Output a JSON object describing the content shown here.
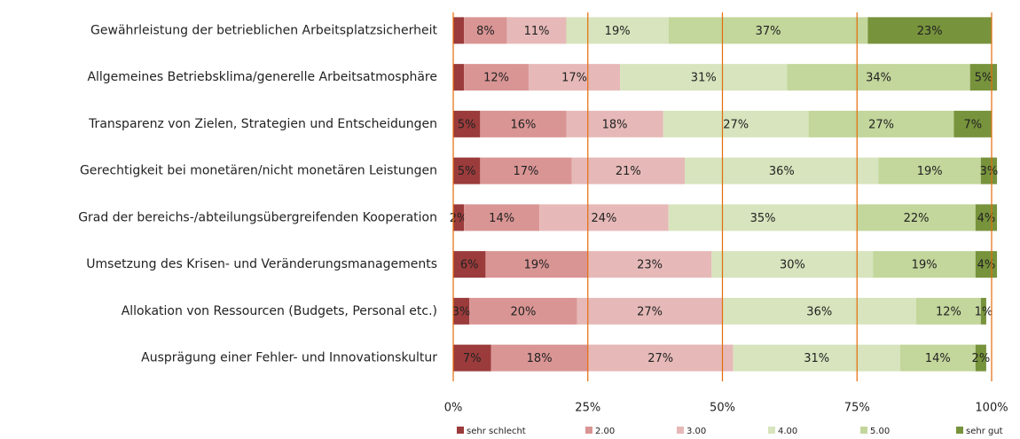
{
  "chart_data": {
    "type": "stacked-bar-horizontal",
    "categories": [
      "Gewährleistung der betrieblichen Arbeitsplatzsicherheit",
      "Allgemeines Betriebsklima/generelle Arbeitsatmosphäre",
      "Transparenz von Zielen, Strategien und Entscheidungen",
      "Gerechtigkeit bei monetären/nicht monetären Leistungen",
      "Grad der bereichs-/abteilungsübergreifenden Kooperation",
      "Umsetzung des Krisen- und Veränderungsmanagements",
      "Allokation von Ressourcen (Budgets, Personal etc.)",
      "Ausprägung einer Fehler- und Innovationskultur"
    ],
    "series": [
      {
        "name": "sehr schlecht",
        "color": "#9b3b3b",
        "values": [
          2,
          2,
          5,
          5,
          2,
          6,
          3,
          7
        ],
        "value_labels": [
          null,
          null,
          "5%",
          "5%",
          "2%",
          "6%",
          "3%",
          "7%"
        ]
      },
      {
        "name": "2.00",
        "color": "#d99594",
        "values": [
          8,
          12,
          16,
          17,
          14,
          19,
          20,
          18
        ],
        "value_labels": [
          "8%",
          "12%",
          "16%",
          "17%",
          "14%",
          "19%",
          "20%",
          "18%"
        ]
      },
      {
        "name": "3.00",
        "color": "#e6b9b8",
        "values": [
          11,
          17,
          18,
          21,
          24,
          23,
          27,
          27
        ],
        "value_labels": [
          "11%",
          "17%",
          "18%",
          "21%",
          "24%",
          "23%",
          "27%",
          "27%"
        ]
      },
      {
        "name": "4.00",
        "color": "#d7e4bd",
        "values": [
          19,
          31,
          27,
          36,
          35,
          30,
          36,
          31
        ],
        "value_labels": [
          "19%",
          "31%",
          "27%",
          "36%",
          "35%",
          "30%",
          "36%",
          "31%"
        ]
      },
      {
        "name": "5.00",
        "color": "#c3d69b",
        "values": [
          37,
          34,
          27,
          19,
          22,
          19,
          12,
          14
        ],
        "value_labels": [
          "37%",
          "34%",
          "27%",
          "19%",
          "22%",
          "19%",
          "12%",
          "14%"
        ]
      },
      {
        "name": "sehr gut",
        "color": "#77933c",
        "values": [
          23,
          5,
          7,
          3,
          4,
          4,
          1,
          2
        ],
        "value_labels": [
          "23%",
          "5%",
          "7%",
          "3%",
          "4%",
          "4%",
          "1%",
          "2%"
        ]
      }
    ],
    "xlim": [
      0,
      100
    ],
    "xticks": [
      {
        "value": 0,
        "label": "0%"
      },
      {
        "value": 25,
        "label": "25%"
      },
      {
        "value": 50,
        "label": "50%"
      },
      {
        "value": 75,
        "label": "75%"
      },
      {
        "value": 100,
        "label": "100%"
      }
    ],
    "grid": true,
    "grid_color": "#e46c0a",
    "legend": "bottom"
  }
}
